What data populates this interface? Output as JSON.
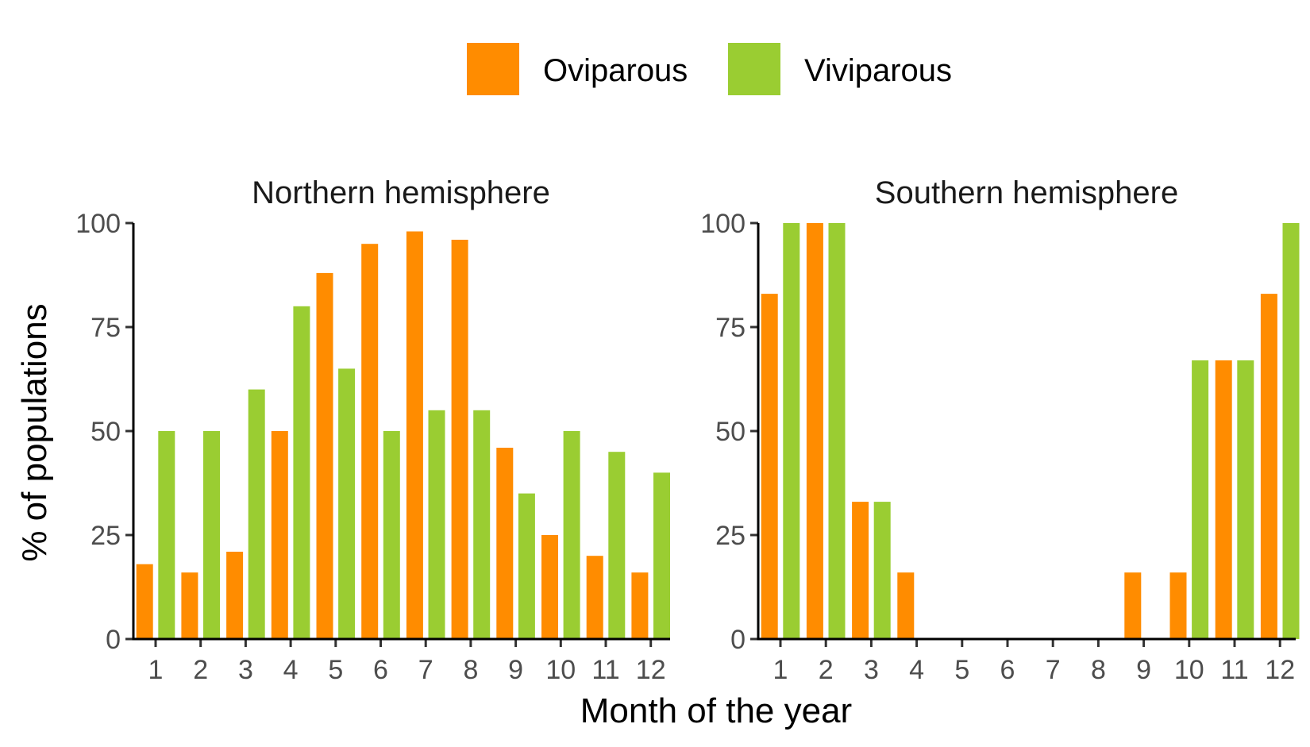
{
  "colors": {
    "oviparous": "#FF8C00",
    "viviparous": "#9ACD32"
  },
  "legend": [
    {
      "label": "Oviparous",
      "color": "#FF8C00"
    },
    {
      "label": "Viviparous",
      "color": "#9ACD32"
    }
  ],
  "axes": {
    "xlabel": "Month of the year",
    "ylabel": "% of populations"
  },
  "chart_data": [
    {
      "type": "bar",
      "title": "Northern hemisphere",
      "categories": [
        "1",
        "2",
        "3",
        "4",
        "5",
        "6",
        "7",
        "8",
        "9",
        "10",
        "11",
        "12"
      ],
      "series": [
        {
          "name": "Oviparous",
          "values": [
            18,
            16,
            21,
            50,
            88,
            95,
            98,
            96,
            46,
            25,
            20,
            16
          ]
        },
        {
          "name": "Viviparous",
          "values": [
            50,
            50,
            60,
            80,
            65,
            50,
            55,
            55,
            35,
            50,
            45,
            40
          ]
        }
      ],
      "xlabel": "Month of the year",
      "ylabel": "% of populations",
      "ylim": [
        0,
        100
      ],
      "yticks": [
        0,
        25,
        50,
        75,
        100
      ],
      "grid": false,
      "legend_position": "top"
    },
    {
      "type": "bar",
      "title": "Southern hemisphere",
      "categories": [
        "1",
        "2",
        "3",
        "4",
        "5",
        "6",
        "7",
        "8",
        "9",
        "10",
        "11",
        "12"
      ],
      "series": [
        {
          "name": "Oviparous",
          "values": [
            83,
            100,
            33,
            16,
            0,
            0,
            0,
            0,
            16,
            16,
            67,
            83
          ]
        },
        {
          "name": "Viviparous",
          "values": [
            100,
            100,
            33,
            0,
            0,
            0,
            0,
            0,
            0,
            67,
            67,
            100
          ]
        }
      ],
      "xlabel": "Month of the year",
      "ylabel": "% of populations",
      "ylim": [
        0,
        100
      ],
      "yticks": [
        0,
        25,
        50,
        75,
        100
      ],
      "grid": false,
      "legend_position": "top"
    }
  ]
}
